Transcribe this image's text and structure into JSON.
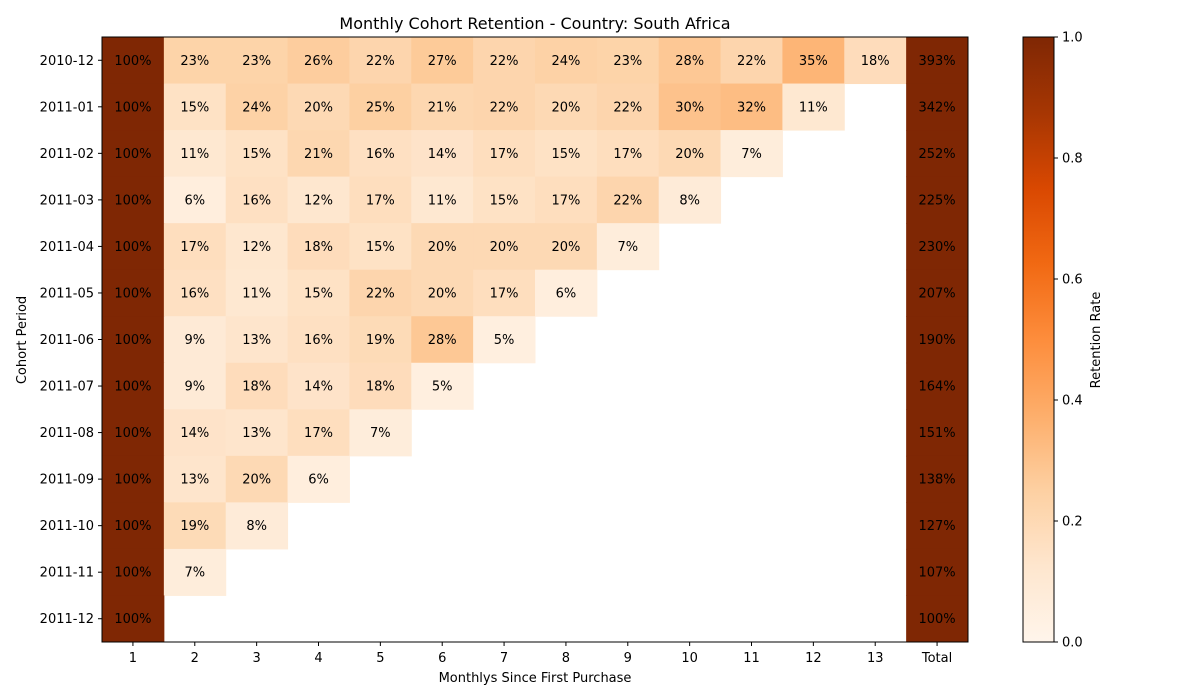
{
  "chart_data": {
    "type": "heatmap",
    "title": "Monthly Cohort Retention - Country: South Africa",
    "xlabel": "Monthlys Since First Purchase",
    "ylabel": "Cohort Period",
    "x_categories": [
      "1",
      "2",
      "3",
      "4",
      "5",
      "6",
      "7",
      "8",
      "9",
      "10",
      "11",
      "12",
      "13",
      "Total"
    ],
    "y_categories": [
      "2010-12",
      "2011-01",
      "2011-02",
      "2011-03",
      "2011-04",
      "2011-05",
      "2011-06",
      "2011-07",
      "2011-08",
      "2011-09",
      "2011-10",
      "2011-11",
      "2011-12"
    ],
    "cell_labels": [
      [
        "100%",
        "23%",
        "23%",
        "26%",
        "22%",
        "27%",
        "22%",
        "24%",
        "23%",
        "28%",
        "22%",
        "35%",
        "18%",
        "393%"
      ],
      [
        "100%",
        "15%",
        "24%",
        "20%",
        "25%",
        "21%",
        "22%",
        "20%",
        "22%",
        "30%",
        "32%",
        "11%",
        null,
        "342%"
      ],
      [
        "100%",
        "11%",
        "15%",
        "21%",
        "16%",
        "14%",
        "17%",
        "15%",
        "17%",
        "20%",
        "7%",
        null,
        null,
        "252%"
      ],
      [
        "100%",
        "6%",
        "16%",
        "12%",
        "17%",
        "11%",
        "15%",
        "17%",
        "22%",
        "8%",
        null,
        null,
        null,
        "225%"
      ],
      [
        "100%",
        "17%",
        "12%",
        "18%",
        "15%",
        "20%",
        "20%",
        "20%",
        "7%",
        null,
        null,
        null,
        null,
        "230%"
      ],
      [
        "100%",
        "16%",
        "11%",
        "15%",
        "22%",
        "20%",
        "17%",
        "6%",
        null,
        null,
        null,
        null,
        null,
        "207%"
      ],
      [
        "100%",
        "9%",
        "13%",
        "16%",
        "19%",
        "28%",
        "5%",
        null,
        null,
        null,
        null,
        null,
        null,
        "190%"
      ],
      [
        "100%",
        "9%",
        "18%",
        "14%",
        "18%",
        "5%",
        null,
        null,
        null,
        null,
        null,
        null,
        null,
        "164%"
      ],
      [
        "100%",
        "14%",
        "13%",
        "17%",
        "7%",
        null,
        null,
        null,
        null,
        null,
        null,
        null,
        null,
        "151%"
      ],
      [
        "100%",
        "13%",
        "20%",
        "6%",
        null,
        null,
        null,
        null,
        null,
        null,
        null,
        null,
        null,
        "138%"
      ],
      [
        "100%",
        "19%",
        "8%",
        null,
        null,
        null,
        null,
        null,
        null,
        null,
        null,
        null,
        null,
        "127%"
      ],
      [
        "100%",
        "7%",
        null,
        null,
        null,
        null,
        null,
        null,
        null,
        null,
        null,
        null,
        null,
        "107%"
      ],
      [
        "100%",
        null,
        null,
        null,
        null,
        null,
        null,
        null,
        null,
        null,
        null,
        null,
        null,
        "100%"
      ]
    ],
    "values": [
      [
        1.0,
        0.23,
        0.23,
        0.26,
        0.22,
        0.27,
        0.22,
        0.24,
        0.23,
        0.28,
        0.22,
        0.35,
        0.18,
        3.93
      ],
      [
        1.0,
        0.15,
        0.24,
        0.2,
        0.25,
        0.21,
        0.22,
        0.2,
        0.22,
        0.3,
        0.32,
        0.11,
        null,
        3.42
      ],
      [
        1.0,
        0.11,
        0.15,
        0.21,
        0.16,
        0.14,
        0.17,
        0.15,
        0.17,
        0.2,
        0.07,
        null,
        null,
        2.52
      ],
      [
        1.0,
        0.06,
        0.16,
        0.12,
        0.17,
        0.11,
        0.15,
        0.17,
        0.22,
        0.08,
        null,
        null,
        null,
        2.25
      ],
      [
        1.0,
        0.17,
        0.12,
        0.18,
        0.15,
        0.2,
        0.2,
        0.2,
        0.07,
        null,
        null,
        null,
        null,
        2.3
      ],
      [
        1.0,
        0.16,
        0.11,
        0.15,
        0.22,
        0.2,
        0.17,
        0.06,
        null,
        null,
        null,
        null,
        null,
        2.07
      ],
      [
        1.0,
        0.09,
        0.13,
        0.16,
        0.19,
        0.28,
        0.05,
        null,
        null,
        null,
        null,
        null,
        null,
        1.9
      ],
      [
        1.0,
        0.09,
        0.18,
        0.14,
        0.18,
        0.05,
        null,
        null,
        null,
        null,
        null,
        null,
        null,
        1.64
      ],
      [
        1.0,
        0.14,
        0.13,
        0.17,
        0.07,
        null,
        null,
        null,
        null,
        null,
        null,
        null,
        null,
        1.51
      ],
      [
        1.0,
        0.13,
        0.2,
        0.06,
        null,
        null,
        null,
        null,
        null,
        null,
        null,
        null,
        null,
        1.38
      ],
      [
        1.0,
        0.19,
        0.08,
        null,
        null,
        null,
        null,
        null,
        null,
        null,
        null,
        null,
        null,
        1.27
      ],
      [
        1.0,
        0.07,
        null,
        null,
        null,
        null,
        null,
        null,
        null,
        null,
        null,
        null,
        null,
        1.07
      ],
      [
        1.0,
        null,
        null,
        null,
        null,
        null,
        null,
        null,
        null,
        null,
        null,
        null,
        null,
        1.0
      ]
    ],
    "colorbar": {
      "label": "Retention Rate",
      "range": [
        0.0,
        1.0
      ],
      "ticks": [
        "0.0",
        "0.2",
        "0.4",
        "0.6",
        "0.8",
        "1.0"
      ],
      "colormap": "Oranges"
    }
  }
}
